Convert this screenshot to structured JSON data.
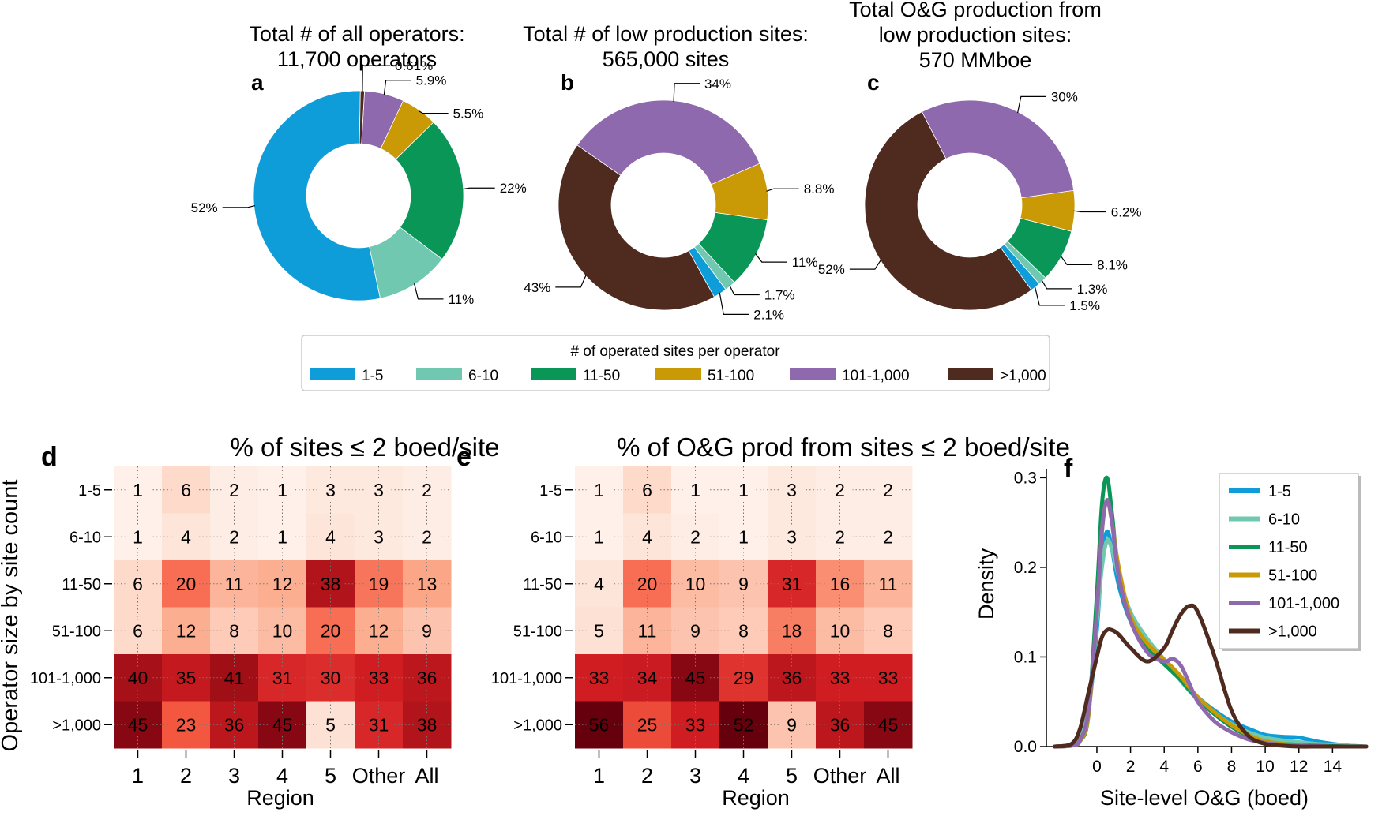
{
  "chart_data": [
    {
      "id": "a",
      "type": "pie",
      "panel_label": "a",
      "title_lines": [
        "Total # of all operators:",
        "11,700 operators"
      ],
      "categories": [
        "1-5",
        "6-10",
        "11-50",
        "51-100",
        "101-1,000",
        ">1,000"
      ],
      "values": [
        52,
        11,
        22,
        5.5,
        5.9,
        0.61
      ],
      "pct_labels": [
        "52%",
        "11%",
        "22%",
        "5.5%",
        "5.9%",
        "0.61%"
      ]
    },
    {
      "id": "b",
      "type": "pie",
      "panel_label": "b",
      "title_lines": [
        "Total # of low production sites:",
        "565,000 sites"
      ],
      "categories": [
        "1-5",
        "6-10",
        "11-50",
        "51-100",
        "101-1,000",
        ">1,000"
      ],
      "values": [
        2.1,
        1.7,
        11,
        8.8,
        34,
        43
      ],
      "pct_labels": [
        "2.1%",
        "1.7%",
        "11%",
        "8.8%",
        "34%",
        "43%"
      ]
    },
    {
      "id": "c",
      "type": "pie",
      "panel_label": "c",
      "title_lines": [
        "Total O&G production from",
        "low production sites:",
        "570 MMboe"
      ],
      "categories": [
        "1-5",
        "6-10",
        "11-50",
        "51-100",
        "101-1,000",
        ">1,000"
      ],
      "values": [
        1.5,
        1.3,
        8.1,
        6.2,
        30,
        52
      ],
      "pct_labels": [
        "1.5%",
        "1.3%",
        "8.1%",
        "6.2%",
        "30%",
        "52%"
      ]
    },
    {
      "id": "d",
      "type": "heatmap",
      "panel_label": "d",
      "title": "% of sites  ≤ 2 boed/site",
      "xlabel": "Region",
      "ylabel": "Operator size by site count",
      "x_categories": [
        "1",
        "2",
        "3",
        "4",
        "5",
        "Other",
        "All"
      ],
      "y_categories": [
        "1-5",
        "6-10",
        "11-50",
        "51-100",
        "101-1,000",
        ">1,000"
      ],
      "values": [
        [
          1,
          6,
          2,
          1,
          3,
          3,
          2
        ],
        [
          1,
          4,
          2,
          1,
          4,
          3,
          2
        ],
        [
          6,
          20,
          11,
          12,
          38,
          19,
          13
        ],
        [
          6,
          12,
          8,
          10,
          20,
          12,
          9
        ],
        [
          40,
          35,
          41,
          31,
          30,
          33,
          36
        ],
        [
          45,
          23,
          36,
          45,
          5,
          31,
          38
        ]
      ]
    },
    {
      "id": "e",
      "type": "heatmap",
      "panel_label": "e",
      "title": "% of O&G prod from sites  ≤ 2 boed/site",
      "xlabel": "Region",
      "x_categories": [
        "1",
        "2",
        "3",
        "4",
        "5",
        "Other",
        "All"
      ],
      "y_categories": [
        "1-5",
        "6-10",
        "11-50",
        "51-100",
        "101-1,000",
        ">1,000"
      ],
      "values": [
        [
          1,
          6,
          1,
          1,
          3,
          2,
          2
        ],
        [
          1,
          4,
          2,
          1,
          3,
          2,
          2
        ],
        [
          4,
          20,
          10,
          9,
          31,
          16,
          11
        ],
        [
          5,
          11,
          9,
          8,
          18,
          10,
          8
        ],
        [
          33,
          34,
          45,
          29,
          36,
          33,
          33
        ],
        [
          56,
          25,
          33,
          52,
          9,
          36,
          45
        ]
      ]
    },
    {
      "id": "f",
      "type": "line",
      "panel_label": "f",
      "xlabel": "Site-level O&G (boed)",
      "ylabel": "Density",
      "xlim": [
        -3,
        16
      ],
      "ylim": [
        0,
        0.31
      ],
      "x_ticks": [
        "0",
        "2",
        "4",
        "6",
        "8",
        "10",
        "12",
        "14"
      ],
      "y_ticks": [
        "0.0",
        "0.1",
        "0.2",
        "0.3"
      ],
      "x": [
        -2.5,
        -1.5,
        -1,
        -0.5,
        0,
        0.3,
        0.6,
        0.9,
        1.3,
        2,
        3,
        4,
        4.5,
        5,
        5.5,
        6,
        7,
        8,
        9,
        10,
        11,
        12,
        13,
        14,
        15,
        16
      ],
      "series": [
        {
          "name": "1-5",
          "values": [
            0,
            0.002,
            0.01,
            0.04,
            0.13,
            0.21,
            0.24,
            0.22,
            0.18,
            0.14,
            0.115,
            0.095,
            0.085,
            0.075,
            0.065,
            0.055,
            0.04,
            0.028,
            0.02,
            0.013,
            0.011,
            0.01,
            0.006,
            0.003,
            0.001,
            0
          ]
        },
        {
          "name": "6-10",
          "values": [
            0,
            0.002,
            0.012,
            0.045,
            0.14,
            0.2,
            0.23,
            0.22,
            0.19,
            0.15,
            0.12,
            0.097,
            0.085,
            0.073,
            0.062,
            0.052,
            0.037,
            0.025,
            0.016,
            0.01,
            0.007,
            0.005,
            0.003,
            0.002,
            0.001,
            0
          ]
        },
        {
          "name": "11-50",
          "values": [
            0,
            0.001,
            0.006,
            0.035,
            0.17,
            0.27,
            0.3,
            0.26,
            0.19,
            0.14,
            0.11,
            0.092,
            0.083,
            0.074,
            0.063,
            0.053,
            0.036,
            0.022,
            0.012,
            0.006,
            0.003,
            0.002,
            0.001,
            0.0005,
            0,
            0
          ]
        },
        {
          "name": "51-100",
          "values": [
            0,
            0.001,
            0.006,
            0.035,
            0.15,
            0.24,
            0.275,
            0.25,
            0.2,
            0.145,
            0.115,
            0.097,
            0.088,
            0.078,
            0.066,
            0.055,
            0.038,
            0.024,
            0.013,
            0.006,
            0.003,
            0.0015,
            0.0005,
            0,
            0,
            0
          ]
        },
        {
          "name": "101-1,000",
          "values": [
            0,
            0.001,
            0.007,
            0.04,
            0.15,
            0.24,
            0.275,
            0.25,
            0.19,
            0.14,
            0.105,
            0.095,
            0.098,
            0.09,
            0.07,
            0.05,
            0.028,
            0.016,
            0.008,
            0.004,
            0.002,
            0.001,
            0.0005,
            0,
            0,
            0
          ]
        },
        {
          "name": ">1,000",
          "values": [
            0,
            0.003,
            0.02,
            0.06,
            0.1,
            0.122,
            0.13,
            0.13,
            0.125,
            0.11,
            0.095,
            0.11,
            0.13,
            0.148,
            0.157,
            0.15,
            0.1,
            0.04,
            0.012,
            0.003,
            0.001,
            0,
            0,
            0,
            0,
            0
          ]
        }
      ]
    }
  ],
  "legend": {
    "title": "# of operated sites per operator",
    "items": [
      "1-5",
      "6-10",
      "11-50",
      "51-100",
      "101-1,000",
      ">1,000"
    ]
  },
  "colors": {
    "categories": [
      "#0e9dd9",
      "#71c8b1",
      "#099657",
      "#c99a06",
      "#8e69ad",
      "#4e2a1f"
    ],
    "heatmap_low": "#fdf1ec",
    "heatmap_high": "#67000d"
  }
}
